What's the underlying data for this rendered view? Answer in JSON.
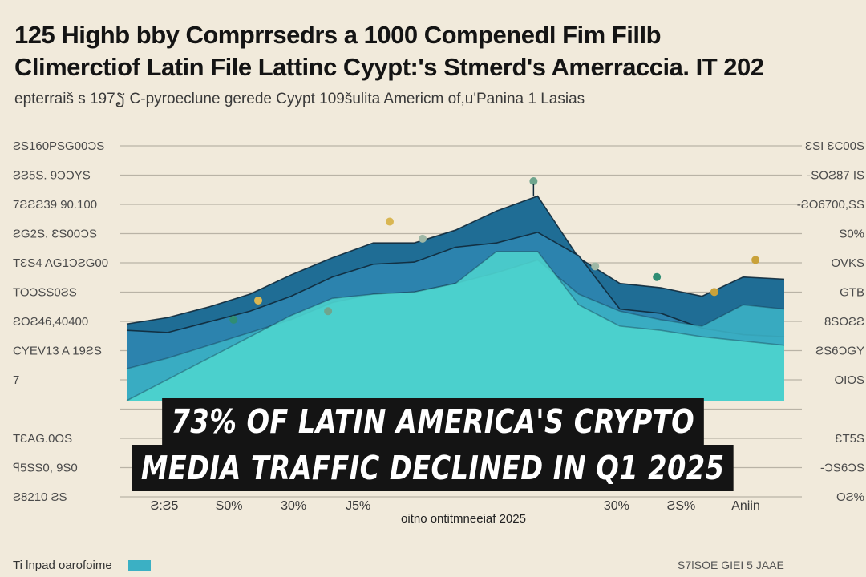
{
  "header": {
    "title_line1": "125 Highb bby Comprrsedrs a 1000  Compenedl Fim Fillb",
    "title_line2": "Climerctiof Latin File Lattinc Cyypt:'s Stmerd's Amerraccia. IT 202",
    "subtitle": "epterraiš s 197ຽ C-pyroeclune gerede Cyypt 109šulita Americm of,u'Panina 1 Lasias"
  },
  "banner": {
    "line1": "73% of Latin America's Crypto",
    "line2": "Media Traffic Declined in Q1 2025"
  },
  "footer": {
    "left_text": "Ti lnpad oarofoime",
    "right_text": "S7ǀSOE GIEI 5 JAAE"
  },
  "colors": {
    "background": "#f1eadb",
    "deep_blue": "#1f6d95",
    "mid_blue": "#2e86b0",
    "teal": "#3bb0c4",
    "aqua": "#4fd6cf",
    "banner_bg": "#141414"
  },
  "chart_data": {
    "type": "area",
    "title": "125 Highb bby Comprrsedrs a 1000  Compenedl Fim Fillb",
    "xlabel": "oitno ontitmneeiaf 2025",
    "grid": true,
    "y_left_ticks": [
      "ƧS160PSG00ƆS",
      "ƧƧ5S. 9ƆƆYS",
      "7ƧƧƧ39 90.100",
      "ƧG2S. ƐS00ƆS",
      "TƐS4 AG1ƆƧG00",
      "TOƆSS0ƧS",
      "ƧOƧ46,40400",
      "CYEV13 A 19ƧS",
      "7",
      "",
      "TƐAG.0OS",
      "ꟼ5SS0, 9S0",
      "Ƨ8210 ƧS"
    ],
    "y_right_ticks": [
      "ƐSI ƐC00S",
      "-SOƧ87 IS",
      "-ƧO6700,SS",
      "S0%",
      "OVKS",
      "GTB",
      "8SOƧƧ",
      "ƧS6ƆGY",
      "OIOS",
      "",
      "ƐT5S",
      "-ƆS6ƆS",
      "OƧ%"
    ],
    "x_ticks": [
      "Ƨ:Ƨ5",
      "S0%",
      "30%",
      "J5%",
      "",
      "",
      "",
      "30%",
      "ƧS%",
      "Aniin"
    ],
    "x": [
      0,
      1,
      2,
      3,
      4,
      5,
      6,
      7,
      8,
      9,
      10,
      11,
      12,
      13,
      14,
      15,
      16
    ],
    "ymin": 0,
    "ymax": 100,
    "series": [
      {
        "values": [
          36,
          39,
          44,
          50,
          59,
          67,
          74,
          74,
          80,
          89,
          96,
          67,
          55,
          53,
          49,
          58,
          57
        ]
      },
      {
        "values": [
          33,
          32,
          37,
          42,
          49,
          58,
          64,
          65,
          72,
          74,
          79,
          68,
          43,
          41,
          34,
          31,
          30
        ]
      },
      {
        "values": [
          15,
          20,
          26,
          32,
          38,
          46,
          50,
          51,
          55,
          60,
          66,
          50,
          42,
          38,
          35,
          45,
          43
        ]
      },
      {
        "values": [
          0,
          10,
          20,
          30,
          40,
          48,
          50,
          51,
          55,
          70,
          70,
          45,
          35,
          33,
          30,
          28,
          26
        ]
      }
    ],
    "dots": [
      {
        "x": 6.4,
        "y": 81
      },
      {
        "x": 7.2,
        "y": 73
      },
      {
        "x": 9.9,
        "y": 100
      },
      {
        "x": 12.9,
        "y": 55
      },
      {
        "x": 14.3,
        "y": 48
      },
      {
        "x": 3.2,
        "y": 44
      },
      {
        "x": 11.4,
        "y": 60
      },
      {
        "x": 4.9,
        "y": 39
      },
      {
        "x": 2.6,
        "y": 35
      },
      {
        "x": 15.3,
        "y": 63
      }
    ]
  }
}
